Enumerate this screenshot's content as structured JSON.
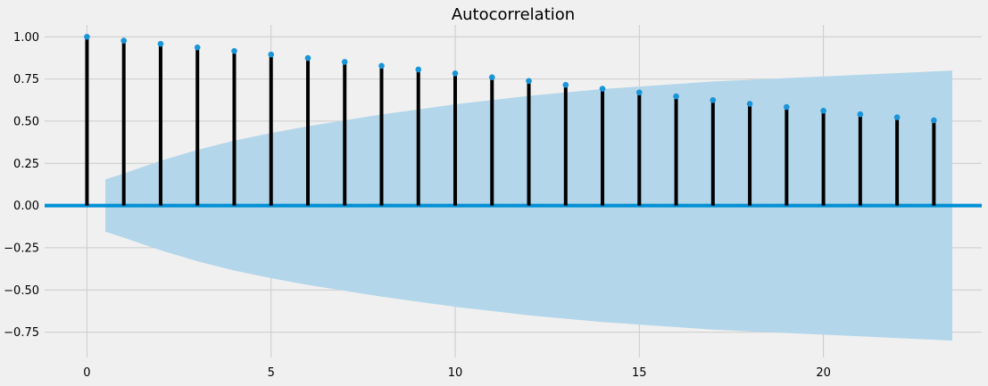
{
  "chart_data": {
    "type": "stem",
    "title": "Autocorrelation",
    "xlabel": "",
    "ylabel": "",
    "x_ticks": [
      0,
      5,
      10,
      15,
      20
    ],
    "y_ticks": [
      -0.75,
      -0.5,
      -0.25,
      0.0,
      0.25,
      0.5,
      0.75,
      1.0
    ],
    "y_tick_labels": [
      "−0.75",
      "−0.50",
      "−0.25",
      "0.00",
      "0.25",
      "0.50",
      "0.75",
      "1.00"
    ],
    "xlim": [
      -1.15,
      24.3
    ],
    "ylim": [
      -0.9,
      1.07
    ],
    "grid": true,
    "lags": [
      0,
      1,
      2,
      3,
      4,
      5,
      6,
      7,
      8,
      9,
      10,
      11,
      12,
      13,
      14,
      15,
      16,
      17,
      18,
      19,
      20,
      21,
      22,
      23
    ],
    "values": [
      1.0,
      0.977,
      0.958,
      0.937,
      0.916,
      0.895,
      0.874,
      0.851,
      0.828,
      0.806,
      0.783,
      0.76,
      0.738,
      0.715,
      0.692,
      0.67,
      0.647,
      0.625,
      0.603,
      0.584,
      0.562,
      0.541,
      0.523,
      0.505
    ],
    "confidence_band": {
      "x": [
        0.5,
        1,
        2,
        3,
        4,
        5,
        6,
        7,
        8,
        9,
        10,
        11,
        12,
        13,
        14,
        15,
        16,
        17,
        18,
        19,
        20,
        21,
        22,
        23,
        23.5
      ],
      "upper": [
        0.155,
        0.19,
        0.265,
        0.33,
        0.385,
        0.43,
        0.47,
        0.505,
        0.54,
        0.57,
        0.6,
        0.625,
        0.65,
        0.67,
        0.69,
        0.705,
        0.72,
        0.735,
        0.745,
        0.755,
        0.765,
        0.775,
        0.785,
        0.795,
        0.8
      ]
    },
    "colors": {
      "background": "#f0f0f0",
      "grid": "#cbcbcb",
      "stem": "#000000",
      "marker": "#1a95d8",
      "zero_line": "#008fd5",
      "band": "#b3d6ea"
    }
  }
}
